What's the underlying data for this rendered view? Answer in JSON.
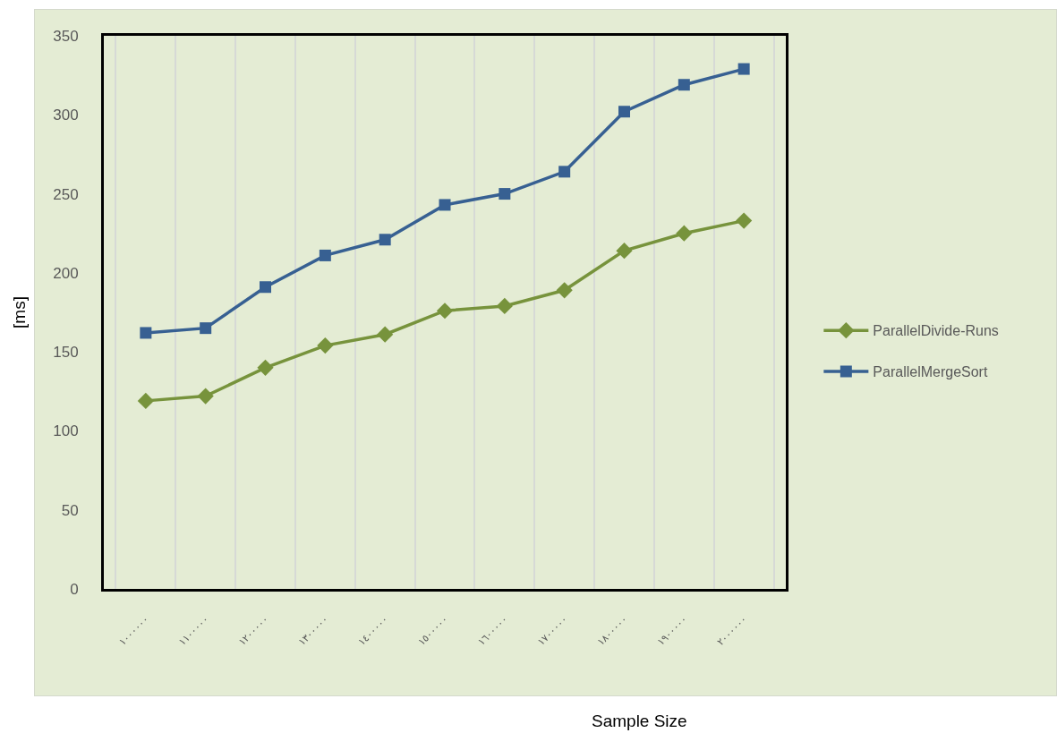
{
  "chart_data": {
    "type": "line",
    "xlabel": "Sample Size",
    "ylabel": "[ms]",
    "categories": [
      "١٠٠٠٠٠٠",
      "١١٠٠٠٠٠",
      "١٢٠٠٠٠٠",
      "١٣٠٠٠٠٠",
      "١٤٠٠٠٠٠",
      "١٥٠٠٠٠٠",
      "١٦٠٠٠٠٠",
      "١٧٠٠٠٠٠",
      "١٨٠٠٠٠٠",
      "١٩٠٠٠٠٠",
      "٢٠٠٠٠٠٠"
    ],
    "series": [
      {
        "name": "ParallelDivide-Runs",
        "color": "#77933c",
        "marker": "diamond",
        "values": [
          119,
          122,
          140,
          154,
          161,
          176,
          179,
          189,
          214,
          225,
          233
        ]
      },
      {
        "name": "ParallelMergeSort",
        "color": "#376092",
        "marker": "square",
        "values": [
          162,
          165,
          191,
          211,
          221,
          243,
          250,
          264,
          302,
          319,
          329
        ]
      }
    ],
    "ylim": [
      0,
      350
    ],
    "yticks": [
      0,
      50,
      100,
      150,
      200,
      250,
      300,
      350
    ],
    "grid": "x",
    "legend": "right",
    "line_style": "solid"
  }
}
